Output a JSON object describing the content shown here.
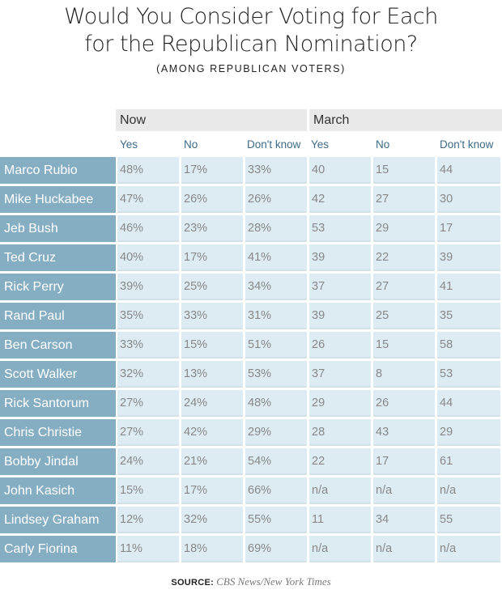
{
  "header": {
    "title_line1": "Would You Consider Voting for Each",
    "title_line2": "for the Republican Nomination?",
    "subtitle": "(AMONG REPUBLICAN VOTERS)"
  },
  "groups": [
    "Now",
    "March"
  ],
  "subheaders": [
    "Yes",
    "No",
    "Don't know",
    "Yes",
    "No",
    "Don't know"
  ],
  "rows": [
    {
      "name": "Marco Rubio",
      "now": [
        "48%",
        "17%",
        "33%"
      ],
      "march": [
        "40",
        "15",
        "44"
      ]
    },
    {
      "name": "Mike Huckabee",
      "now": [
        "47%",
        "26%",
        "26%"
      ],
      "march": [
        "42",
        "27",
        "30"
      ]
    },
    {
      "name": "Jeb Bush",
      "now": [
        "46%",
        "23%",
        "28%"
      ],
      "march": [
        "53",
        "29",
        "17"
      ]
    },
    {
      "name": "Ted Cruz",
      "now": [
        "40%",
        "17%",
        "41%"
      ],
      "march": [
        "39",
        "22",
        "39"
      ]
    },
    {
      "name": "Rick Perry",
      "now": [
        "39%",
        "25%",
        "34%"
      ],
      "march": [
        "37",
        "27",
        "41"
      ]
    },
    {
      "name": "Rand Paul",
      "now": [
        "35%",
        "33%",
        "31%"
      ],
      "march": [
        "39",
        "25",
        "35"
      ]
    },
    {
      "name": "Ben Carson",
      "now": [
        "33%",
        "15%",
        "51%"
      ],
      "march": [
        "26",
        "15",
        "58"
      ]
    },
    {
      "name": "Scott Walker",
      "now": [
        "32%",
        "13%",
        "53%"
      ],
      "march": [
        "37",
        "8",
        "53"
      ]
    },
    {
      "name": "Rick Santorum",
      "now": [
        "27%",
        "24%",
        "48%"
      ],
      "march": [
        "29",
        "26",
        "44"
      ]
    },
    {
      "name": "Chris Christie",
      "now": [
        "27%",
        "42%",
        "29%"
      ],
      "march": [
        "28",
        "43",
        "29"
      ]
    },
    {
      "name": "Bobby Jindal",
      "now": [
        "24%",
        "21%",
        "54%"
      ],
      "march": [
        "22",
        "17",
        "61"
      ]
    },
    {
      "name": "John Kasich",
      "now": [
        "15%",
        "17%",
        "66%"
      ],
      "march": [
        "n/a",
        "n/a",
        "n/a"
      ]
    },
    {
      "name": "Lindsey Graham",
      "now": [
        "12%",
        "32%",
        "55%"
      ],
      "march": [
        "11",
        "34",
        "55"
      ]
    },
    {
      "name": "Carly Fiorina",
      "now": [
        "11%",
        "18%",
        "69%"
      ],
      "march": [
        "n/a",
        "n/a",
        "n/a"
      ]
    }
  ],
  "source": {
    "label": "SOURCE:",
    "text": "CBS News/New York Times"
  },
  "colors": {
    "name_bg": "#86aec3",
    "cell_bg": "#ddecf2",
    "group_bg": "#e9e9e9",
    "subheader_text": "#3d6b88"
  },
  "chart_data": {
    "type": "table",
    "title": "Would You Consider Voting for Each for the Republican Nomination?",
    "subtitle": "(AMONG REPUBLICAN VOTERS)",
    "columns": [
      "Candidate",
      "Now Yes",
      "Now No",
      "Now Don't know",
      "March Yes",
      "March No",
      "March Don't know"
    ],
    "categories": [
      "Marco Rubio",
      "Mike Huckabee",
      "Jeb Bush",
      "Ted Cruz",
      "Rick Perry",
      "Rand Paul",
      "Ben Carson",
      "Scott Walker",
      "Rick Santorum",
      "Chris Christie",
      "Bobby Jindal",
      "John Kasich",
      "Lindsey Graham",
      "Carly Fiorina"
    ],
    "series": [
      {
        "name": "Now Yes",
        "values": [
          48,
          47,
          46,
          40,
          39,
          35,
          33,
          32,
          27,
          27,
          24,
          15,
          12,
          11
        ]
      },
      {
        "name": "Now No",
        "values": [
          17,
          26,
          23,
          17,
          25,
          33,
          15,
          13,
          24,
          42,
          21,
          17,
          32,
          18
        ]
      },
      {
        "name": "Now Don't know",
        "values": [
          33,
          26,
          28,
          41,
          34,
          31,
          51,
          53,
          48,
          29,
          54,
          66,
          55,
          69
        ]
      },
      {
        "name": "March Yes",
        "values": [
          40,
          42,
          53,
          39,
          37,
          39,
          26,
          37,
          29,
          28,
          22,
          null,
          11,
          null
        ]
      },
      {
        "name": "March No",
        "values": [
          15,
          27,
          29,
          22,
          27,
          25,
          15,
          8,
          26,
          43,
          17,
          null,
          34,
          null
        ]
      },
      {
        "name": "March Don't know",
        "values": [
          44,
          30,
          17,
          39,
          41,
          35,
          58,
          53,
          44,
          29,
          61,
          null,
          55,
          null
        ]
      }
    ],
    "source": "CBS News/New York Times"
  }
}
